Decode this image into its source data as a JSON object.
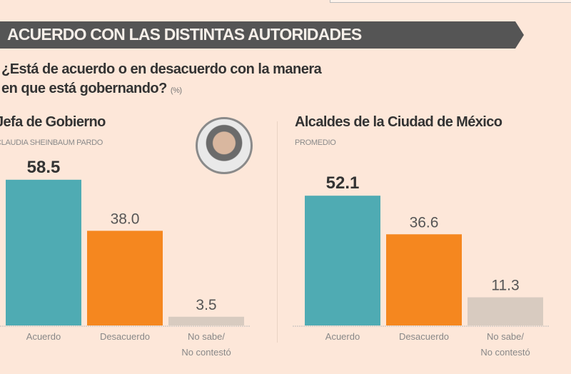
{
  "header": {
    "title": "ACUERDO CON LAS DISTINTAS AUTORIDADES"
  },
  "question": {
    "line1": "¿Está de acuerdo o en desacuerdo con la manera",
    "line2": "en que está gobernando?",
    "unit": "(%)"
  },
  "colors": {
    "acuerdo": "#4fabb3",
    "desacuerdo": "#f5871f",
    "no_sabe": "#d8cbc0",
    "banner": "#555555",
    "background": "#fde7d9"
  },
  "panels": [
    {
      "title": "Jefa de Gobierno",
      "subtitle": "CLAUDIA SHEINBAUM PARDO",
      "avatar": "portrait-photo"
    },
    {
      "title": "Alcaldes de la Ciudad de México",
      "subtitle": "PROMEDIO"
    }
  ],
  "chart_data": [
    {
      "type": "bar",
      "categories": [
        "Acuerdo",
        "Desacuerdo",
        "No sabe/\nNo contestó"
      ],
      "values": [
        58.5,
        38.0,
        3.5
      ],
      "value_labels": [
        "58.5",
        "38.0",
        "3.5"
      ],
      "ylim": [
        0,
        60
      ]
    },
    {
      "type": "bar",
      "categories": [
        "Acuerdo",
        "Desacuerdo",
        "No sabe/\nNo contestó"
      ],
      "values": [
        52.1,
        36.6,
        11.3
      ],
      "value_labels": [
        "52.1",
        "36.6",
        "11.3"
      ],
      "ylim": [
        0,
        60
      ]
    }
  ]
}
